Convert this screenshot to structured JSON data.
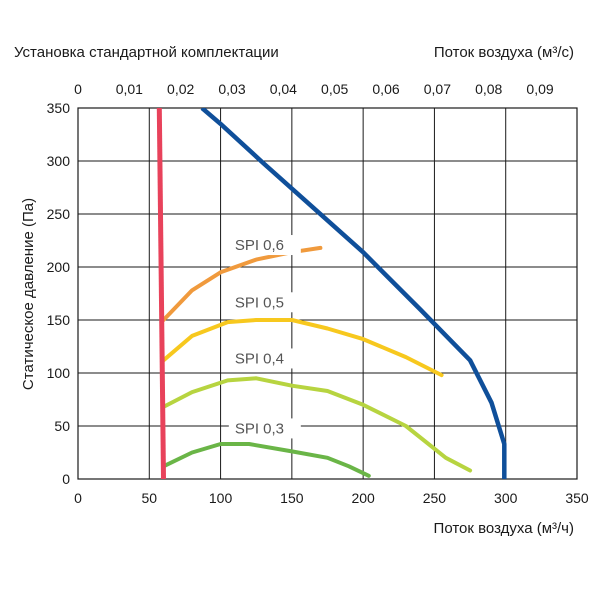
{
  "chart_data": {
    "type": "line",
    "title": "Установка стандартной комплектации",
    "xlabel": "Поток воздуха (м³/ч)",
    "x2label": "Поток воздуха (м³/с)",
    "ylabel": "Статическое давление (Па)",
    "xlim": [
      0,
      350
    ],
    "ylim": [
      0,
      350
    ],
    "x2lim": [
      0,
      0.0972
    ],
    "x_ticks": [
      "0",
      "50",
      "100",
      "150",
      "200",
      "250",
      "300",
      "350"
    ],
    "x_tick_values": [
      0,
      50,
      100,
      150,
      200,
      250,
      300,
      350
    ],
    "x2_ticks": [
      "0",
      "0,01",
      "0,02",
      "0,03",
      "0,04",
      "0,05",
      "0,06",
      "0,07",
      "0,08",
      "0,09"
    ],
    "x2_tick_values": [
      0,
      0.01,
      0.02,
      0.03,
      0.04,
      0.05,
      0.06,
      0.07,
      0.08,
      0.09
    ],
    "y_ticks": [
      "0",
      "50",
      "100",
      "150",
      "200",
      "250",
      "300",
      "350"
    ],
    "y_tick_values": [
      0,
      50,
      100,
      150,
      200,
      250,
      300,
      350
    ],
    "grid": true,
    "series": [
      {
        "name": "SPI 0,3",
        "color": "#6ab547",
        "points": [
          [
            60,
            12
          ],
          [
            80,
            25
          ],
          [
            100,
            33
          ],
          [
            120,
            33
          ],
          [
            150,
            26
          ],
          [
            175,
            20
          ],
          [
            190,
            12
          ],
          [
            204,
            3
          ]
        ]
      },
      {
        "name": "SPI 0,4",
        "color": "#b7d440",
        "points": [
          [
            60,
            68
          ],
          [
            80,
            82
          ],
          [
            105,
            93
          ],
          [
            125,
            95
          ],
          [
            150,
            88
          ],
          [
            175,
            83
          ],
          [
            200,
            70
          ],
          [
            230,
            50
          ],
          [
            258,
            20
          ],
          [
            275,
            8
          ]
        ]
      },
      {
        "name": "SPI 0,5",
        "color": "#f7c81e",
        "points": [
          [
            60,
            112
          ],
          [
            80,
            135
          ],
          [
            105,
            148
          ],
          [
            125,
            150
          ],
          [
            150,
            150
          ],
          [
            175,
            142
          ],
          [
            200,
            132
          ],
          [
            230,
            115
          ],
          [
            255,
            98
          ]
        ]
      },
      {
        "name": "SPI 0,6",
        "color": "#f09a3d",
        "points": [
          [
            60,
            150
          ],
          [
            80,
            178
          ],
          [
            100,
            195
          ],
          [
            125,
            207
          ],
          [
            150,
            214
          ],
          [
            170,
            218
          ]
        ]
      },
      {
        "name": "",
        "color": "#e8425b",
        "points": [
          [
            57,
            350
          ],
          [
            60,
            0
          ]
        ]
      },
      {
        "name": "",
        "color": "#0f4f9a",
        "points": [
          [
            87,
            350
          ],
          [
            100,
            335
          ],
          [
            130,
            298
          ],
          [
            160,
            262
          ],
          [
            200,
            214
          ],
          [
            240,
            160
          ],
          [
            275,
            112
          ],
          [
            290,
            72
          ],
          [
            299,
            33
          ],
          [
            299,
            0
          ]
        ]
      }
    ],
    "label_positions": [
      {
        "series": "SPI 0,3",
        "x": 110,
        "y": 43
      },
      {
        "series": "SPI 0,4",
        "x": 110,
        "y": 109
      },
      {
        "series": "SPI 0,5",
        "x": 110,
        "y": 162
      },
      {
        "series": "SPI 0,6",
        "x": 110,
        "y": 216
      }
    ]
  }
}
